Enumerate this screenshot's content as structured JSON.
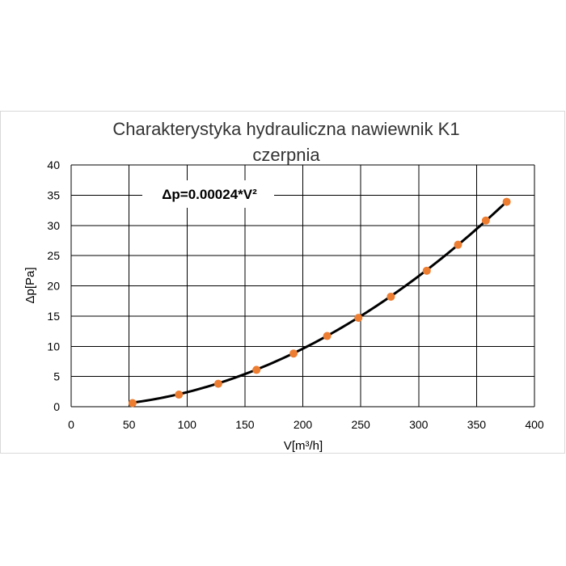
{
  "chart_data": {
    "type": "scatter",
    "title_line1": "Charakterystyka hydrauliczna nawiewnik K1",
    "title_line2": "czerpnia",
    "xlabel": "V[m³/h]",
    "ylabel": "Δp[Pa]",
    "annotation": "Δp=0.00024*V²",
    "xlim": [
      0,
      400
    ],
    "ylim": [
      0,
      40
    ],
    "x_ticks": [
      0,
      50,
      100,
      150,
      200,
      250,
      300,
      350,
      400
    ],
    "y_ticks": [
      0,
      5,
      10,
      15,
      20,
      25,
      30,
      35,
      40
    ],
    "grid": true,
    "series": [
      {
        "kind": "points",
        "x": [
          53,
          93,
          127,
          160,
          192,
          221,
          248,
          276,
          307,
          334,
          358,
          376
        ],
        "y": [
          0.6,
          2.0,
          3.8,
          6.1,
          8.8,
          11.7,
          14.7,
          18.2,
          22.5,
          26.8,
          30.8,
          33.9
        ]
      },
      {
        "kind": "trendline",
        "formula_coefficient": 0.00024,
        "x_range": [
          53,
          376
        ]
      }
    ],
    "colors": {
      "points": "#ed7d31",
      "trendline": "#000000",
      "grid": "#000000",
      "frame": "#d9d9d9"
    }
  }
}
